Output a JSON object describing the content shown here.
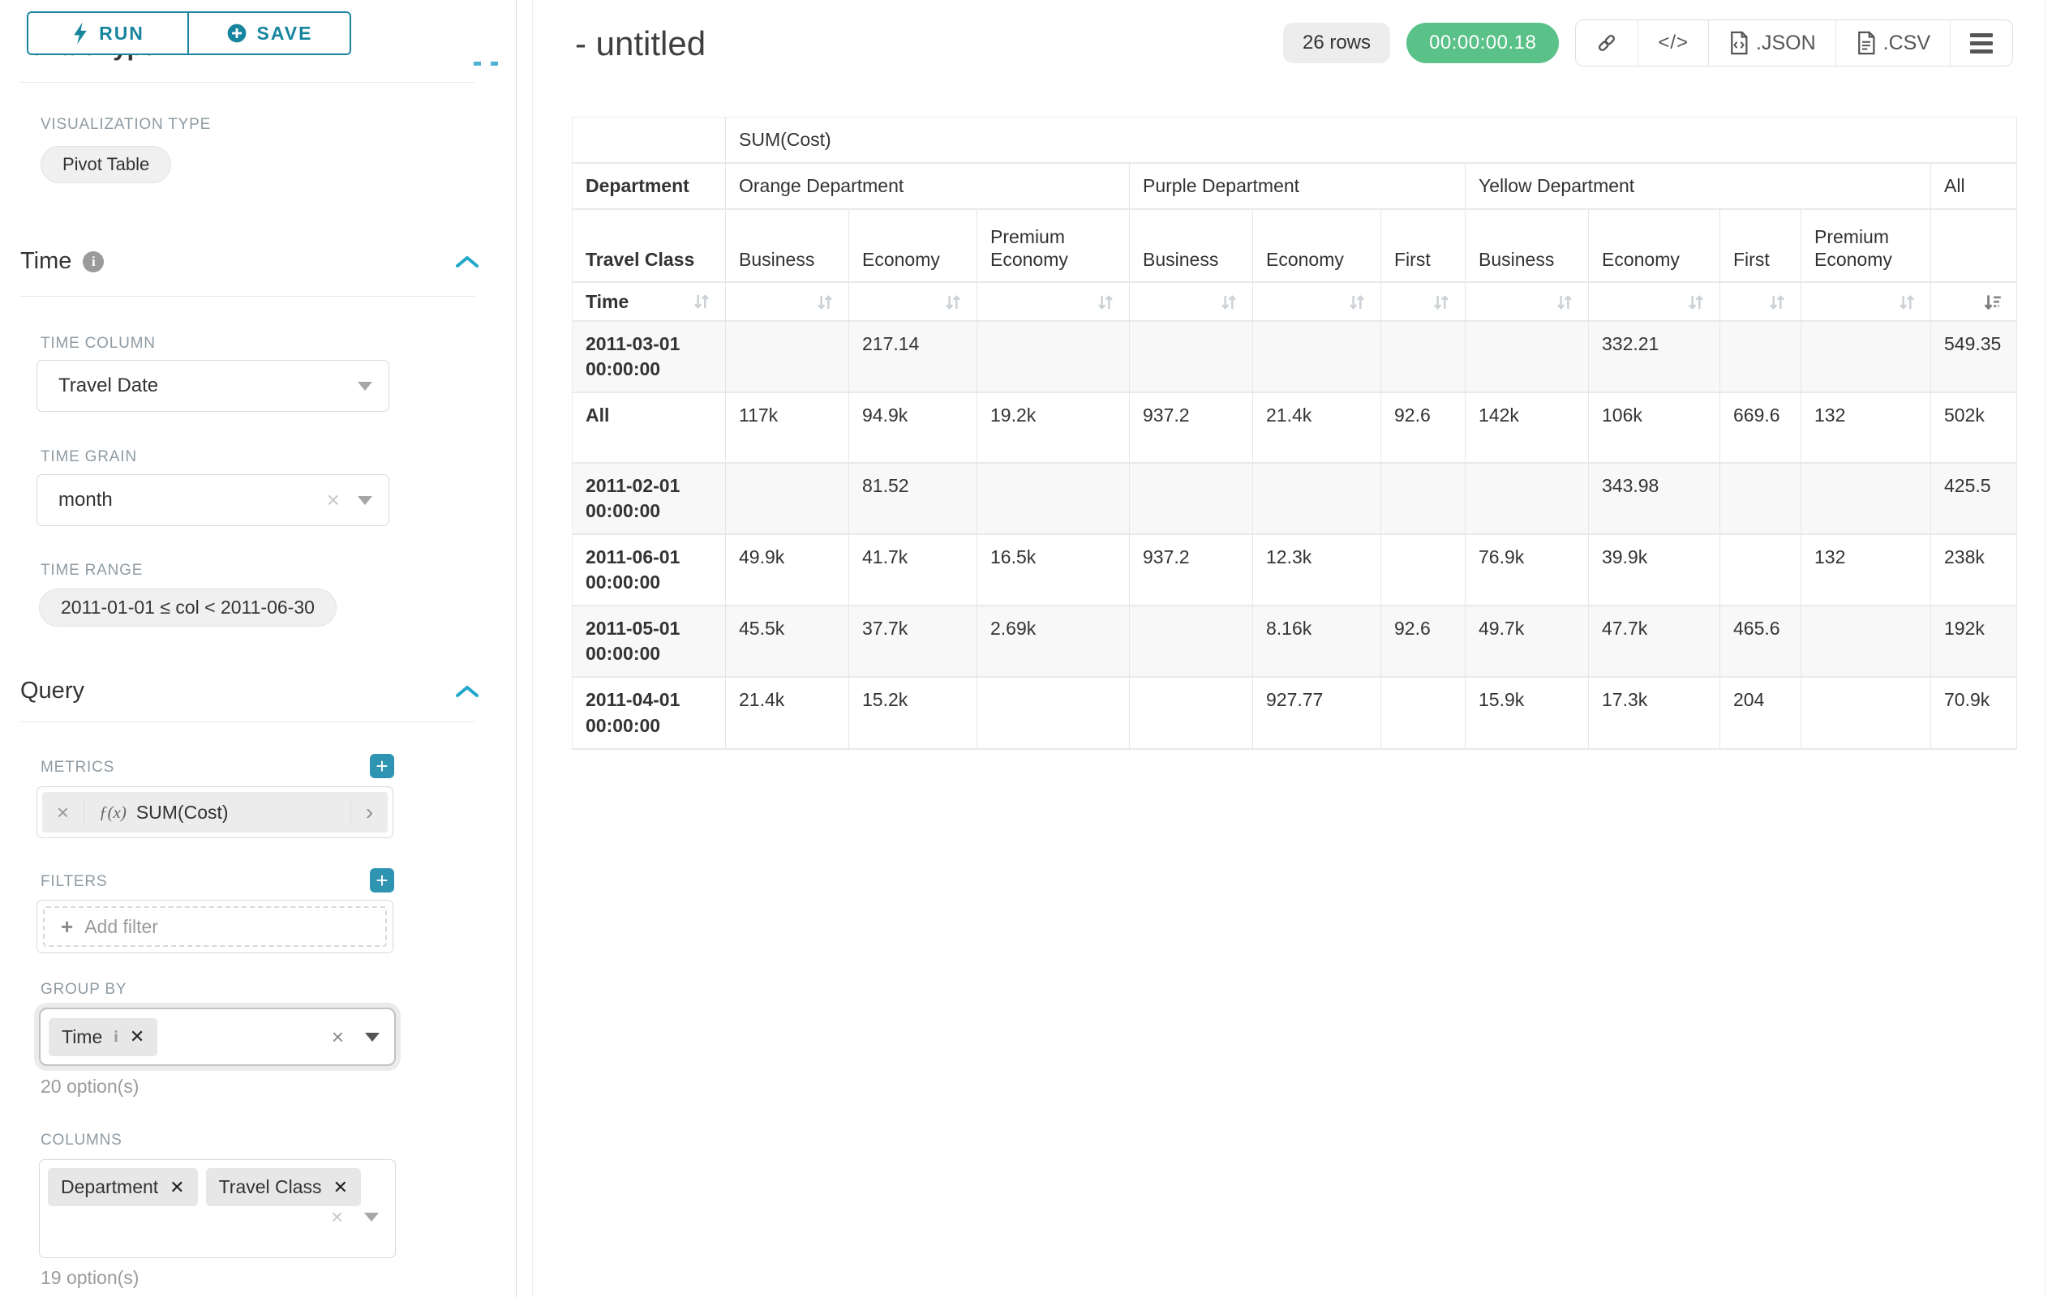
{
  "sidebar": {
    "run_label": "RUN",
    "save_label": "SAVE",
    "chart_type_heading": "Chart Type",
    "visualization_type_label": "VISUALIZATION TYPE",
    "visualization_type_value": "Pivot Table",
    "time_section": {
      "title": "Time",
      "time_column_label": "TIME COLUMN",
      "time_column_value": "Travel Date",
      "time_grain_label": "TIME GRAIN",
      "time_grain_value": "month",
      "time_range_label": "TIME RANGE",
      "time_range_value": "2011-01-01 ≤ col < 2011-06-30"
    },
    "query_section": {
      "title": "Query",
      "metrics_label": "METRICS",
      "metric_fx": "ƒ(x)",
      "metric_value": "SUM(Cost)",
      "filters_label": "FILTERS",
      "add_filter_label": "Add filter",
      "group_by_label": "GROUP BY",
      "group_by_tags": [
        {
          "label": "Time",
          "has_info": true
        }
      ],
      "group_by_hint": "20 option(s)",
      "columns_label": "COLUMNS",
      "columns_tags": [
        {
          "label": "Department",
          "has_info": false
        },
        {
          "label": "Travel Class",
          "has_info": false
        }
      ],
      "columns_hint": "19 option(s)"
    }
  },
  "header": {
    "title": "- untitled",
    "rows_badge": "26 rows",
    "timer_badge": "00:00:00.18",
    "json_label": ".JSON",
    "csv_label": ".CSV",
    "code_glyph": "</>"
  },
  "colors": {
    "teal_button": "#18859e",
    "teal_accent": "#20a7c9",
    "plus_button": "#2f94b2",
    "timer_green": "#5ac189"
  },
  "chart_data": {
    "type": "table",
    "metric": "SUM(Cost)",
    "row_dimension": "Time",
    "column_dimensions": [
      "Department",
      "Travel Class"
    ],
    "column_groups": [
      {
        "department": "Orange Department",
        "classes": [
          "Business",
          "Economy",
          "Premium Economy"
        ]
      },
      {
        "department": "Purple Department",
        "classes": [
          "Business",
          "Economy",
          "First"
        ]
      },
      {
        "department": "Yellow Department",
        "classes": [
          "Business",
          "Economy",
          "First",
          "Premium Economy"
        ]
      },
      {
        "department": "All",
        "classes": [
          ""
        ]
      }
    ],
    "sorted_column_index": 10,
    "rows": [
      {
        "time": "2011-03-01 00:00:00",
        "values": [
          "",
          "217.14",
          "",
          "",
          "",
          "",
          "",
          "332.21",
          "",
          "",
          "549.35"
        ]
      },
      {
        "time": "All",
        "values": [
          "117k",
          "94.9k",
          "19.2k",
          "937.2",
          "21.4k",
          "92.6",
          "142k",
          "106k",
          "669.6",
          "132",
          "502k"
        ]
      },
      {
        "time": "2011-02-01 00:00:00",
        "values": [
          "",
          "81.52",
          "",
          "",
          "",
          "",
          "",
          "343.98",
          "",
          "",
          "425.5"
        ]
      },
      {
        "time": "2011-06-01 00:00:00",
        "values": [
          "49.9k",
          "41.7k",
          "16.5k",
          "937.2",
          "12.3k",
          "",
          "76.9k",
          "39.9k",
          "",
          "132",
          "238k"
        ]
      },
      {
        "time": "2011-05-01 00:00:00",
        "values": [
          "45.5k",
          "37.7k",
          "2.69k",
          "",
          "8.16k",
          "92.6",
          "49.7k",
          "47.7k",
          "465.6",
          "",
          "192k"
        ]
      },
      {
        "time": "2011-04-01 00:00:00",
        "values": [
          "21.4k",
          "15.2k",
          "",
          "",
          "927.77",
          "",
          "15.9k",
          "17.3k",
          "204",
          "",
          "70.9k"
        ]
      }
    ]
  }
}
